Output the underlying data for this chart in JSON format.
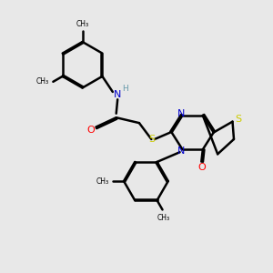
{
  "bg_color": "#e8e8e8",
  "atom_colors": {
    "C": "#000000",
    "N": "#0000cc",
    "O": "#ff0000",
    "S": "#cccc00",
    "H": "#6699aa"
  },
  "bond_color": "#000000",
  "bond_width": 1.8,
  "dbo": 0.055,
  "xlim": [
    0,
    10
  ],
  "ylim": [
    0,
    10
  ]
}
